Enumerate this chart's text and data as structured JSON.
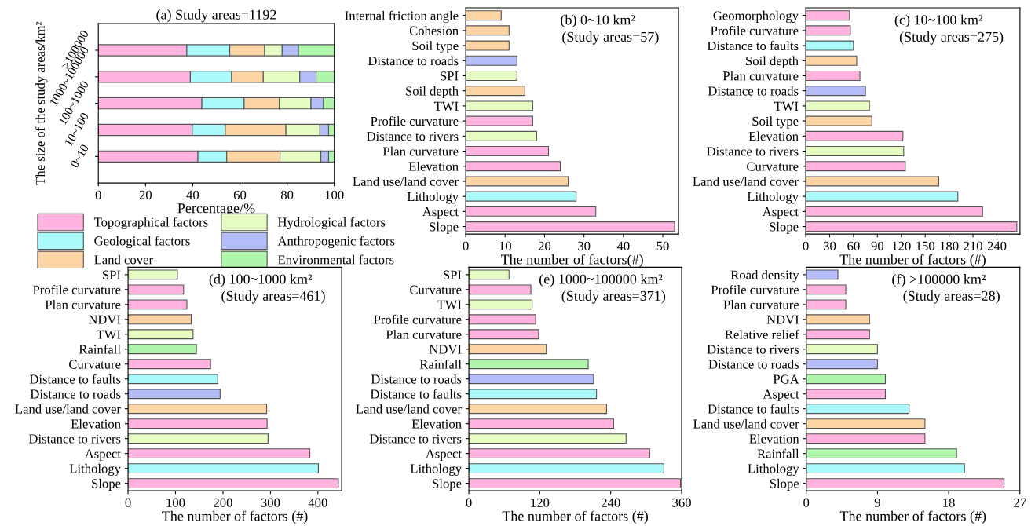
{
  "chart_data": [
    {
      "type": "bar",
      "orientation": "horizontal",
      "stacked": true,
      "title": "(a) Study areas=1192",
      "xlabel": "Percentage/%",
      "ylabel": "The size of the study areas/km²",
      "categories": [
        ">100000",
        "1000~100000",
        "100~1000",
        "10~100",
        "0~10"
      ],
      "xlim": [
        0,
        100
      ],
      "xticks": [
        0,
        20,
        40,
        60,
        80,
        100
      ],
      "legend": "bottom",
      "grid": false,
      "series": [
        {
          "name": "Topographical factors",
          "color": "#ffb3de",
          "values": [
            37.5,
            39.0,
            43.9,
            39.8,
            42.2
          ]
        },
        {
          "name": "Geological factors",
          "color": "#aaf9fb",
          "values": [
            18.2,
            17.5,
            17.9,
            14.0,
            12.2
          ]
        },
        {
          "name": "Land cover",
          "color": "#fdd5a5",
          "values": [
            14.8,
            13.4,
            14.9,
            25.7,
            22.6
          ]
        },
        {
          "name": "Hydrological factors",
          "color": "#e6fcc2",
          "values": [
            7.4,
            15.5,
            13.4,
            14.4,
            17.3
          ]
        },
        {
          "name": "Anthropogenic factors",
          "color": "#b5bdf8",
          "values": [
            6.9,
            6.9,
            5.3,
            3.7,
            3.3
          ]
        },
        {
          "name": "Environmental factors",
          "color": "#aff5ac",
          "values": [
            15.2,
            7.7,
            4.6,
            2.4,
            2.4
          ]
        }
      ]
    },
    {
      "type": "bar",
      "orientation": "horizontal",
      "annotations": [
        "(b) 0~10 km²",
        "(Study areas=57)"
      ],
      "xlabel": "The number of factors(#)",
      "categories": [
        "Internal friction angle",
        "Cohesion",
        "Soil type",
        "Distance to roads",
        "SPI",
        "Soil depth",
        "TWI",
        "Profile curvature",
        "Distance to rivers",
        "Plan curvature",
        "Elevation",
        "Land use/land cover",
        "Lithology",
        "Aspect",
        "Slope"
      ],
      "xlim": [
        0,
        54
      ],
      "xticks": [
        0,
        10,
        20,
        30,
        40,
        50
      ],
      "grid": false,
      "values": [
        9,
        11,
        11,
        13,
        13,
        15,
        17,
        17,
        18,
        21,
        24,
        26,
        28,
        33,
        53
      ],
      "colors": [
        "#fdd5a5",
        "#fdd5a5",
        "#fdd5a5",
        "#b5bdf8",
        "#e6fcc2",
        "#fdd5a5",
        "#e6fcc2",
        "#ffb3de",
        "#e6fcc2",
        "#ffb3de",
        "#ffb3de",
        "#fdd5a5",
        "#aaf9fb",
        "#ffb3de",
        "#ffb3de"
      ]
    },
    {
      "type": "bar",
      "orientation": "horizontal",
      "annotations": [
        "(c) 10~100 km²",
        "(Study areas=275)"
      ],
      "xlabel": "The number of factors (#)",
      "categories": [
        "Geomorphology",
        "Profile curvature",
        "Distance to faults",
        "Soil depth",
        "Plan curvature",
        "Distance to roads",
        "TWI",
        "Soil type",
        "Elevation",
        "Distance to rivers",
        "Curvature",
        "Land use/land cover",
        "Lithology",
        "Aspect",
        "Slope"
      ],
      "xlim": [
        0,
        269
      ],
      "xticks": [
        0,
        30,
        60,
        90,
        120,
        150,
        180,
        210,
        240
      ],
      "grid": false,
      "values": [
        55,
        56,
        60,
        64,
        68,
        75,
        80,
        83,
        122,
        123,
        125,
        167,
        191,
        222,
        265
      ],
      "colors": [
        "#ffb3de",
        "#ffb3de",
        "#aaf9fb",
        "#fdd5a5",
        "#ffb3de",
        "#b5bdf8",
        "#e6fcc2",
        "#fdd5a5",
        "#ffb3de",
        "#e6fcc2",
        "#ffb3de",
        "#fdd5a5",
        "#aaf9fb",
        "#ffb3de",
        "#ffb3de"
      ]
    },
    {
      "type": "bar",
      "orientation": "horizontal",
      "annotations": [
        "(d) 100~1000 km²",
        "(Study areas=461)"
      ],
      "xlabel": "The number of factors (#)",
      "categories": [
        "SPI",
        "Profile curvature",
        "Plan curvature",
        "NDVI",
        "TWI",
        "Rainfall",
        "Curvature",
        "Distance to faults",
        "Distance to roads",
        "Land use/land cover",
        "Elevation",
        "Distance to rivers",
        "Aspect",
        "Lithology",
        "Slope"
      ],
      "xlim": [
        0,
        450
      ],
      "xticks": [
        0,
        100,
        200,
        300,
        400
      ],
      "grid": false,
      "values": [
        104,
        117,
        124,
        133,
        137,
        144,
        174,
        189,
        194,
        292,
        293,
        295,
        383,
        401,
        443
      ],
      "colors": [
        "#e6fcc2",
        "#ffb3de",
        "#ffb3de",
        "#fdd5a5",
        "#e6fcc2",
        "#aff5ac",
        "#ffb3de",
        "#aaf9fb",
        "#b5bdf8",
        "#fdd5a5",
        "#ffb3de",
        "#e6fcc2",
        "#ffb3de",
        "#aaf9fb",
        "#ffb3de"
      ]
    },
    {
      "type": "bar",
      "orientation": "horizontal",
      "annotations": [
        "(e) 1000~100000 km²",
        "(Study areas=371)"
      ],
      "xlabel": "The number of factors (#)",
      "categories": [
        "SPI",
        "Curvature",
        "TWI",
        "Profile curvature",
        "Plan curvature",
        "NDVI",
        "Rainfall",
        "Distance to roads",
        "Distance to faults",
        "Land use/land cover",
        "Elevation",
        "Distance to rivers",
        "Aspect",
        "Lithology",
        "Slope"
      ],
      "xlim": [
        0,
        360
      ],
      "xticks": [
        0,
        120,
        240,
        360
      ],
      "grid": false,
      "values": [
        68,
        105,
        107,
        113,
        118,
        131,
        202,
        211,
        216,
        233,
        245,
        266,
        306,
        330,
        358
      ],
      "colors": [
        "#e6fcc2",
        "#ffb3de",
        "#e6fcc2",
        "#ffb3de",
        "#ffb3de",
        "#fdd5a5",
        "#aff5ac",
        "#b5bdf8",
        "#aaf9fb",
        "#fdd5a5",
        "#ffb3de",
        "#e6fcc2",
        "#ffb3de",
        "#aaf9fb",
        "#ffb3de"
      ]
    },
    {
      "type": "bar",
      "orientation": "horizontal",
      "annotations": [
        "(f) >100000 km²",
        "(Study areas=28)"
      ],
      "xlabel": "The number of factors (#)",
      "categories": [
        "Road density",
        "Profile curvature",
        "Plan curvature",
        "NDVI",
        "Relative relief",
        "Distance to rivers",
        "Distance to roads",
        "PGA",
        "Aspect",
        "Distance to faults",
        "Land use/land cover",
        "Elevation",
        "Rainfall",
        "Lithology",
        "Slope"
      ],
      "xlim": [
        0,
        27
      ],
      "xticks": [
        0,
        9,
        18,
        27
      ],
      "grid": false,
      "values": [
        4,
        5,
        5,
        8,
        8,
        9,
        9,
        10,
        10,
        13,
        15,
        15,
        19,
        20,
        25
      ],
      "colors": [
        "#b5bdf8",
        "#ffb3de",
        "#ffb3de",
        "#fdd5a5",
        "#ffb3de",
        "#e6fcc2",
        "#b5bdf8",
        "#aff5ac",
        "#ffb3de",
        "#aaf9fb",
        "#fdd5a5",
        "#ffb3de",
        "#aff5ac",
        "#aaf9fb",
        "#ffb3de"
      ]
    }
  ]
}
